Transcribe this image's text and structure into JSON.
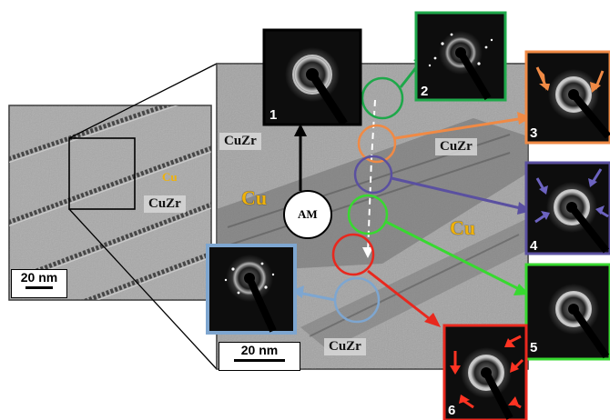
{
  "labels": {
    "cuzr_left": "CuZr",
    "cu_left_small": "Cu",
    "cuzr_main_top": "CuZr",
    "cuzr_main_right": "CuZr",
    "cuzr_main_bottom": "CuZr",
    "cu_main_left": "Cu",
    "cu_main_right": "Cu",
    "am": "AM"
  },
  "scale_bars": {
    "left": "20 nm",
    "main": "20 nm"
  },
  "diffraction_panels": [
    {
      "number": "1",
      "color": "#000000"
    },
    {
      "number": "2",
      "color": "#1ea84a"
    },
    {
      "number": "3",
      "color": "#f08a45"
    },
    {
      "number": "4",
      "color": "#5a50a0"
    },
    {
      "number": "5",
      "color": "#38d930"
    },
    {
      "number": "6",
      "color": "#e8281e"
    },
    {
      "number": "",
      "color": "#7ea6d0"
    }
  ],
  "colors": {
    "green": "#1ea84a",
    "orange": "#f08a45",
    "purple": "#5a50a0",
    "lime": "#38d930",
    "red": "#e8281e",
    "blue": "#7ea6d0",
    "cu_label": "#f0b20a"
  }
}
